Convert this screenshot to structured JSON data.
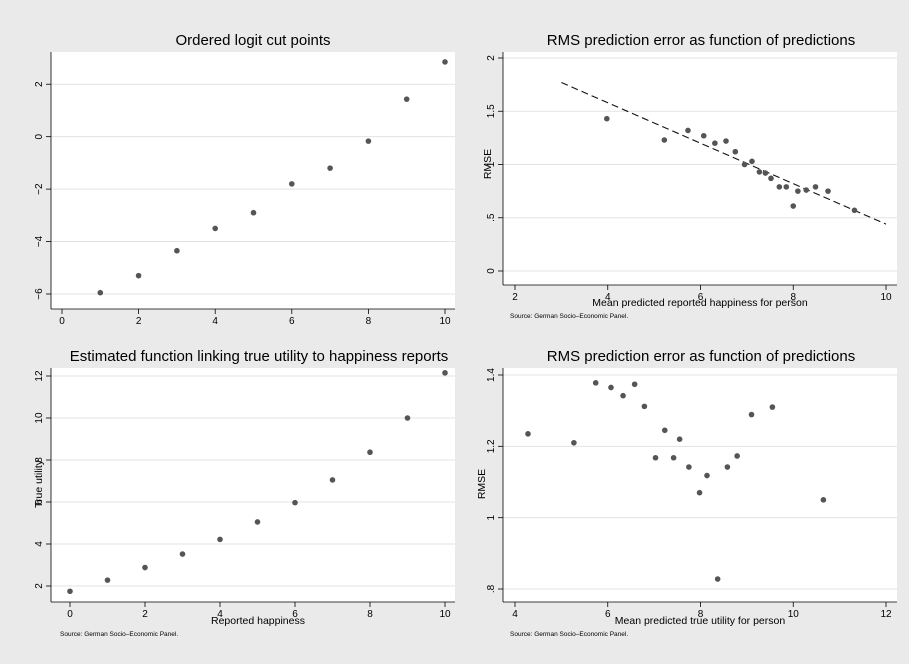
{
  "colors": {
    "background": "#eaeaea",
    "plot_area": "#ffffff",
    "gridline": "#e3e3e3",
    "marker": "#555555",
    "fit_line": "#111111"
  },
  "chart_data": [
    {
      "type": "scatter",
      "title": "Ordered logit cut points",
      "xlabel": "",
      "ylabel": "",
      "note": "",
      "xlim": [
        0,
        10
      ],
      "ylim": [
        -6,
        3
      ],
      "xticks": [
        0,
        2,
        4,
        6,
        8,
        10
      ],
      "yticks": [
        -6,
        -4,
        -2,
        0,
        2
      ],
      "y_tick_labels_rotated": true,
      "grid": true,
      "legend": "none",
      "x": [
        1,
        2,
        3,
        4,
        5,
        6,
        7,
        8,
        9,
        10
      ],
      "y": [
        -5.95,
        -5.3,
        -4.35,
        -3.5,
        -2.9,
        -1.8,
        -1.2,
        -0.17,
        1.43,
        2.85
      ]
    },
    {
      "type": "scatter",
      "title": "RMS prediction error as function of predictions",
      "xlabel": "Mean predicted reported happiness for person",
      "ylabel": "RMSE",
      "note": "Source: German Socio–Economic Panel.",
      "xlim": [
        2,
        10
      ],
      "ylim": [
        0,
        2
      ],
      "xticks": [
        2,
        4,
        6,
        8,
        10
      ],
      "yticks": [
        0,
        0.5,
        1,
        1.5,
        2
      ],
      "ytick_labels": [
        "0",
        ".5",
        "1",
        "1.5",
        "2"
      ],
      "y_tick_labels_rotated": true,
      "grid": true,
      "legend": "none",
      "fit_line": {
        "style": "dashed",
        "x": [
          3,
          10
        ],
        "y": [
          1.77,
          0.44
        ]
      },
      "x": [
        3.98,
        5.22,
        5.73,
        6.07,
        6.31,
        6.55,
        6.75,
        6.95,
        7.11,
        7.27,
        7.4,
        7.52,
        7.7,
        7.85,
        8.0,
        8.1,
        8.28,
        8.48,
        8.75,
        9.32
      ],
      "y": [
        1.43,
        1.23,
        1.32,
        1.27,
        1.2,
        1.22,
        1.12,
        1.0,
        1.03,
        0.93,
        0.92,
        0.87,
        0.79,
        0.79,
        0.61,
        0.75,
        0.76,
        0.79,
        0.75,
        0.57
      ]
    },
    {
      "type": "scatter",
      "title": "Estimated function linking true utility to happiness reports",
      "xlabel": "Reported happiness",
      "ylabel": "True utility",
      "note": "Source: German Socio–Economic Panel.",
      "xlim": [
        0,
        10
      ],
      "ylim": [
        2,
        12
      ],
      "xticks": [
        0,
        2,
        4,
        6,
        8,
        10
      ],
      "yticks": [
        2,
        4,
        6,
        8,
        10,
        12
      ],
      "y_tick_labels_rotated": true,
      "grid": true,
      "legend": "none",
      "x": [
        0,
        1,
        2,
        3,
        4,
        5,
        6,
        7,
        8,
        9,
        10
      ],
      "y": [
        1.75,
        2.28,
        2.88,
        3.52,
        4.22,
        5.05,
        5.97,
        7.05,
        8.37,
        10.0,
        12.15
      ]
    },
    {
      "type": "scatter",
      "title": "RMS prediction error as function of predictions",
      "xlabel": "Mean predicted true utility for person",
      "ylabel": "RMSE",
      "note": "Source: German Socio–Economic Panel.",
      "xlim": [
        4,
        12
      ],
      "ylim": [
        0.8,
        1.4
      ],
      "xticks": [
        4,
        6,
        8,
        10,
        12
      ],
      "yticks": [
        0.8,
        1.0,
        1.2,
        1.4
      ],
      "ytick_labels": [
        ".8",
        "1",
        "1.2",
        "1.4"
      ],
      "y_tick_labels_rotated": true,
      "grid": true,
      "legend": "none",
      "x": [
        4.28,
        5.27,
        5.74,
        6.07,
        6.33,
        6.58,
        6.79,
        7.03,
        7.23,
        7.42,
        7.55,
        7.75,
        7.98,
        8.14,
        8.37,
        8.58,
        8.79,
        9.1,
        9.55,
        10.65
      ],
      "y": [
        1.235,
        1.21,
        1.378,
        1.365,
        1.342,
        1.374,
        1.312,
        1.168,
        1.245,
        1.168,
        1.22,
        1.142,
        1.07,
        1.118,
        0.828,
        1.142,
        1.173,
        1.289,
        1.31,
        1.05
      ]
    }
  ]
}
